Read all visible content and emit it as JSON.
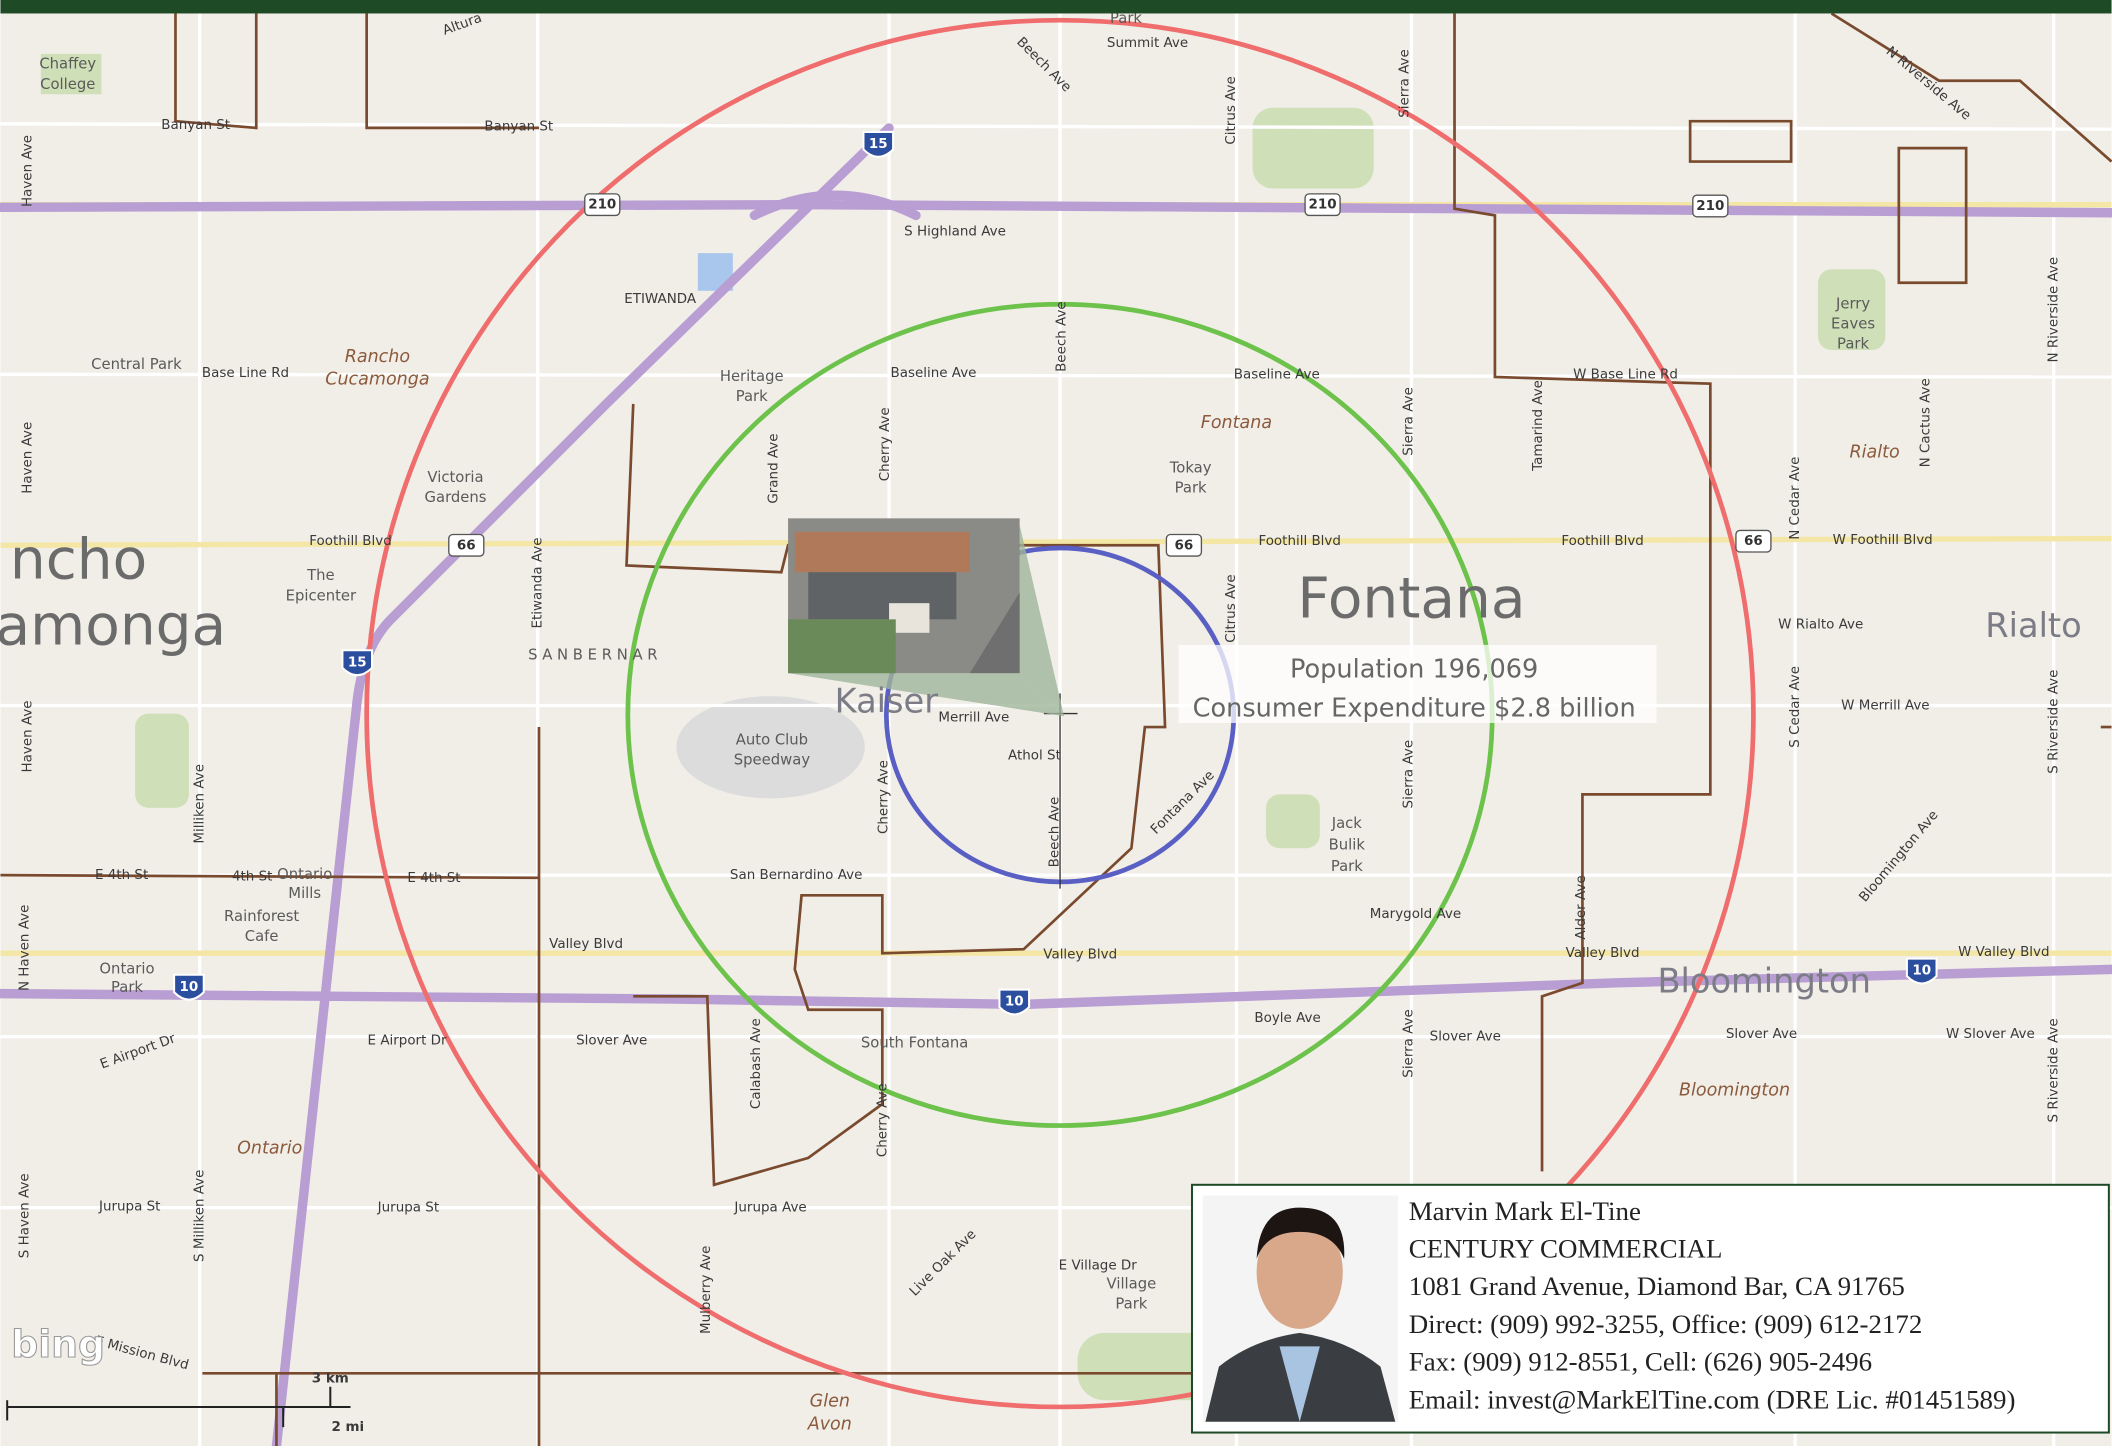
{
  "map": {
    "labels": [
      "Chaffey",
      "College",
      "Banyan St",
      "Banyan St",
      "Summit Ave",
      "Park",
      "Beech Ave",
      "S Highland Ave",
      "ETIWANDA",
      "Central Park",
      "Base Line Rd",
      "Rancho",
      "Cucamonga",
      "Heritage",
      "Park",
      "Baseline Ave",
      "Baseline Ave",
      "Fontana",
      "Tokay",
      "Park",
      "W Base Line Rd",
      "Jerry",
      "Eaves",
      "Park",
      "Rialto",
      "Victoria",
      "Gardens",
      "Foothill Blvd",
      "Foothill Blvd",
      "Foothill Blvd",
      "W Foothill Blvd",
      "ncho",
      "amonga",
      "The",
      "Epicenter",
      "Fontana",
      "W Rialto Ave",
      "Rialto",
      "S A N   B E R N A R",
      "Kaiser",
      "Merrill Ave",
      "Athol St",
      "W Merrill Ave",
      "Auto Club",
      "Speedway",
      "Jack",
      "Bulik",
      "Park",
      "E 4th St",
      "4th St",
      "Ontario",
      "Mills",
      "E 4th St",
      "Rainforest",
      "Cafe",
      "San Bernardino Ave",
      "Marygold Ave",
      "Valley Blvd",
      "Valley Blvd",
      "Valley Blvd",
      "W Valley Blvd",
      "Ontario",
      "Park",
      "Bloomington",
      "Boyle Ave",
      "E Airport Dr",
      "E Airport Dr",
      "Slover Ave",
      "South Fontana",
      "Slover Ave",
      "Slover Ave",
      "W Slover Ave",
      "Bloomington",
      "Ontario",
      "Jurupa St",
      "Jurupa St",
      "Jurupa Ave",
      "E Village Dr",
      "Village",
      "Park",
      "Live Oak Ave",
      "Glen",
      "Avon",
      "E Mission Blvd",
      "Haven Ave",
      "Haven Ave",
      "Haven Ave",
      "N Haven Ave",
      "S Haven Ave",
      "Beech Ave",
      "Citrus Ave",
      "Sierra Ave",
      "Cherry Ave",
      "Grand Ave",
      "Sierra Ave",
      "Tamarind Ave",
      "Etiwanda Ave",
      "Citrus Ave",
      "Cherry Ave",
      "Beech Ave",
      "Sierra Ave",
      "Milliken Ave",
      "N Cedar Ave",
      "S Cedar Ave",
      "N Riverside Ave",
      "S Riverside Ave",
      "N Cactus Ave",
      "Calabash Ave",
      "Cherry Ave",
      "Sierra Ave",
      "S Riverside Ave",
      "S Milliken Ave",
      "Mulberry Ave",
      "Fontana Ave",
      "Bloomington Ave",
      "N Riverside Ave",
      "Alder Ave",
      "Altura"
    ],
    "shields": [
      "210",
      "210",
      "210",
      "15",
      "15",
      "66",
      "66",
      "66",
      "10",
      "10",
      "10"
    ]
  },
  "overlay": {
    "population": "Population 196,069",
    "expenditure": "Consumer Expenditure $2.8 billion"
  },
  "scale": {
    "km": "3 km",
    "mi": "2 mi"
  },
  "logo": "bing",
  "contact": {
    "name": "Marvin Mark El-Tine",
    "company": "CENTURY COMMERCIAL",
    "address": "1081 Grand Avenue, Diamond Bar, CA 91765",
    "phones": "Direct: (909) 992-3255, Office: (909) 612-2172",
    "fax": "Fax: (909) 912-8551, Cell: (626) 905-2496",
    "email": "Email: invest@MarkElTine.com (DRE Lic. #01451589)"
  }
}
